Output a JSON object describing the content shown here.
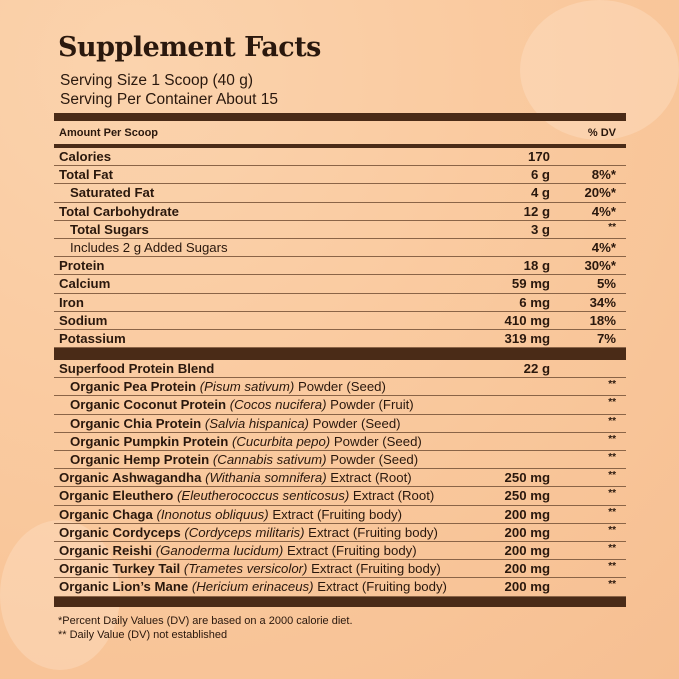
{
  "title": "Supplement Facts",
  "serving_size": "Serving Size 1 Scoop (40 g)",
  "servings_per_container": "Serving Per Container  About 15",
  "header": {
    "amount": "Amount Per Scoop",
    "dv": "% DV"
  },
  "nutrients": [
    {
      "name": "Calories",
      "amount": "170",
      "dv": ""
    },
    {
      "name": "Total Fat",
      "amount": "6 g",
      "dv": "8%*"
    },
    {
      "name": "Saturated Fat",
      "amount": "4 g",
      "dv": "20%*",
      "indent": true
    },
    {
      "name": "Total Carbohydrate",
      "amount": "12 g",
      "dv": "4%*"
    },
    {
      "name": "Total Sugars",
      "amount": "3 g",
      "dv": "**",
      "indent": true
    },
    {
      "name": "Includes 2 g Added Sugars",
      "amount": "",
      "dv": "4%*",
      "indent": true
    },
    {
      "name": "Protein",
      "amount": "18 g",
      "dv": "30%*"
    },
    {
      "name": "Calcium",
      "amount": "59 mg",
      "dv": "5%"
    },
    {
      "name": "Iron",
      "amount": "6 mg",
      "dv": "34%"
    },
    {
      "name": "Sodium",
      "amount": "410 mg",
      "dv": "18%"
    },
    {
      "name": "Potassium",
      "amount": "319 mg",
      "dv": "7%"
    }
  ],
  "blend": [
    {
      "name": "Superfood Protein Blend",
      "latin": "",
      "rest": "",
      "amount": "22 g",
      "dv": ""
    },
    {
      "name": "Organic Pea Protein",
      "latin": "(Pisum sativum)",
      "rest": "Powder (Seed)",
      "amount": "",
      "dv": "**",
      "indent": true
    },
    {
      "name": "Organic Coconut Protein",
      "latin": "(Cocos nucifera)",
      "rest": "Powder (Fruit)",
      "amount": "",
      "dv": "**",
      "indent": true
    },
    {
      "name": "Organic Chia Protein",
      "latin": "(Salvia hispanica)",
      "rest": "Powder (Seed)",
      "amount": "",
      "dv": "**",
      "indent": true
    },
    {
      "name": "Organic Pumpkin Protein",
      "latin": "(Cucurbita pepo)",
      "rest": "Powder (Seed)",
      "amount": "",
      "dv": "**",
      "indent": true
    },
    {
      "name": "Organic Hemp Protein",
      "latin": "(Cannabis sativum)",
      "rest": "Powder (Seed)",
      "amount": "",
      "dv": "**",
      "indent": true
    },
    {
      "name": "Organic Ashwagandha",
      "latin": "(Withania somnifera)",
      "rest": "Extract (Root)",
      "amount": "250 mg",
      "dv": "**"
    },
    {
      "name": "Organic Eleuthero",
      "latin": "(Eleutherococcus senticosus)",
      "rest": "Extract (Root)",
      "amount": "250 mg",
      "dv": "**"
    },
    {
      "name": "Organic Chaga",
      "latin": "(Inonotus obliquus)",
      "rest": "Extract (Fruiting body)",
      "amount": "200 mg",
      "dv": "**"
    },
    {
      "name": "Organic Cordyceps",
      "latin": "(Cordyceps militaris)",
      "rest": "Extract (Fruiting body)",
      "amount": "200 mg",
      "dv": "**"
    },
    {
      "name": "Organic Reishi",
      "latin": "(Ganoderma lucidum)",
      "rest": "Extract (Fruiting body)",
      "amount": "200 mg",
      "dv": "**"
    },
    {
      "name": "Organic Turkey Tail",
      "latin": "(Trametes versicolor)",
      "rest": "Extract (Fruiting body)",
      "amount": "200 mg",
      "dv": "**"
    },
    {
      "name": "Organic Lion’s Mane",
      "latin": "(Hericium erinaceus)",
      "rest": "Extract (Fruiting body)",
      "amount": "200 mg",
      "dv": "**"
    }
  ],
  "footnotes": [
    "*Percent Daily Values (DV) are based on a 2000 calorie diet.",
    "** Daily Value (DV) not established"
  ],
  "colors": {
    "background": "#f9c79b",
    "bars": "#4a2b17",
    "text": "#2a180d"
  }
}
